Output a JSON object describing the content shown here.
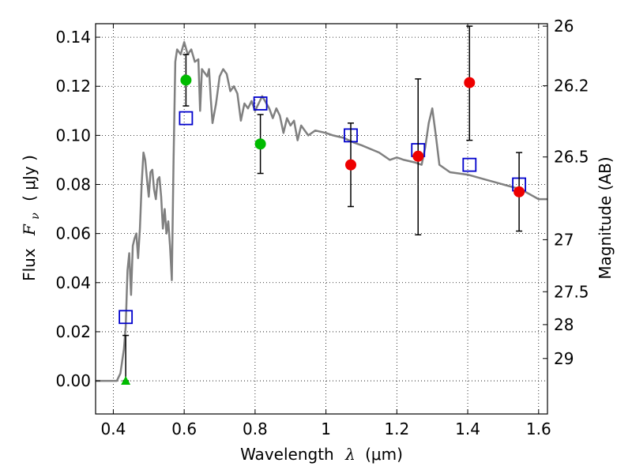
{
  "chart_data": {
    "type": "scatter",
    "title": "",
    "xlabel": {
      "prefix": "Wavelength",
      "symbol": "λ",
      "unit": "(μm)"
    },
    "ylabel": {
      "prefix": "Flux",
      "symbol": "F",
      "subscript": "ν",
      "unit": "( μJy )"
    },
    "y2label": "Magnitude (AB)",
    "xlim": [
      0.35,
      1.625
    ],
    "ylim": [
      -0.0135,
      0.1455
    ],
    "x_ticks": [
      0.4,
      0.6,
      0.8,
      1.0,
      1.2,
      1.4,
      1.6
    ],
    "x_tick_labels": [
      "0.4",
      "0.6",
      "0.8",
      "1",
      "1.2",
      "1.4",
      "1.6"
    ],
    "y_ticks": [
      0.0,
      0.02,
      0.04,
      0.06,
      0.08,
      0.1,
      0.12,
      0.14
    ],
    "y_tick_labels": [
      "0.00",
      "0.02",
      "0.04",
      "0.06",
      "0.08",
      "0.10",
      "0.12",
      "0.14"
    ],
    "y2_ticks": [
      {
        "flux": 0.1445,
        "label": "26"
      },
      {
        "flux": 0.1202,
        "label": "26.2"
      },
      {
        "flux": 0.0912,
        "label": "26.5"
      },
      {
        "flux": 0.0575,
        "label": "27"
      },
      {
        "flux": 0.0363,
        "label": "27.5"
      },
      {
        "flux": 0.0229,
        "label": "28"
      },
      {
        "flux": 0.0091,
        "label": "29"
      }
    ],
    "grid": true,
    "colors": {
      "model": "#808080",
      "observed_green": "#00bb00",
      "observed_red": "#ee0000",
      "model_band": "#0000cc",
      "errorbar": "#000000"
    },
    "series": [
      {
        "kind": "model_sed_line",
        "points": [
          [
            0.35,
            0.0
          ],
          [
            0.41,
            0.0
          ],
          [
            0.42,
            0.003
          ],
          [
            0.43,
            0.013
          ],
          [
            0.435,
            0.022
          ],
          [
            0.44,
            0.045
          ],
          [
            0.445,
            0.052
          ],
          [
            0.45,
            0.035
          ],
          [
            0.455,
            0.055
          ],
          [
            0.46,
            0.058
          ],
          [
            0.465,
            0.06
          ],
          [
            0.47,
            0.05
          ],
          [
            0.475,
            0.062
          ],
          [
            0.48,
            0.08
          ],
          [
            0.485,
            0.093
          ],
          [
            0.49,
            0.09
          ],
          [
            0.495,
            0.082
          ],
          [
            0.5,
            0.075
          ],
          [
            0.505,
            0.085
          ],
          [
            0.51,
            0.086
          ],
          [
            0.515,
            0.078
          ],
          [
            0.52,
            0.074
          ],
          [
            0.525,
            0.082
          ],
          [
            0.53,
            0.083
          ],
          [
            0.535,
            0.075
          ],
          [
            0.54,
            0.062
          ],
          [
            0.545,
            0.07
          ],
          [
            0.55,
            0.06
          ],
          [
            0.555,
            0.065
          ],
          [
            0.56,
            0.055
          ],
          [
            0.565,
            0.041
          ],
          [
            0.57,
            0.09
          ],
          [
            0.575,
            0.13
          ],
          [
            0.58,
            0.135
          ],
          [
            0.59,
            0.133
          ],
          [
            0.6,
            0.138
          ],
          [
            0.61,
            0.133
          ],
          [
            0.62,
            0.135
          ],
          [
            0.63,
            0.13
          ],
          [
            0.64,
            0.131
          ],
          [
            0.645,
            0.11
          ],
          [
            0.65,
            0.127
          ],
          [
            0.66,
            0.125
          ],
          [
            0.665,
            0.124
          ],
          [
            0.67,
            0.127
          ],
          [
            0.675,
            0.115
          ],
          [
            0.68,
            0.105
          ],
          [
            0.69,
            0.113
          ],
          [
            0.7,
            0.124
          ],
          [
            0.71,
            0.127
          ],
          [
            0.72,
            0.125
          ],
          [
            0.73,
            0.118
          ],
          [
            0.74,
            0.12
          ],
          [
            0.75,
            0.117
          ],
          [
            0.76,
            0.106
          ],
          [
            0.77,
            0.113
          ],
          [
            0.78,
            0.111
          ],
          [
            0.79,
            0.114
          ],
          [
            0.8,
            0.11
          ],
          [
            0.82,
            0.116
          ],
          [
            0.84,
            0.111
          ],
          [
            0.85,
            0.107
          ],
          [
            0.86,
            0.111
          ],
          [
            0.87,
            0.108
          ],
          [
            0.88,
            0.101
          ],
          [
            0.89,
            0.107
          ],
          [
            0.9,
            0.104
          ],
          [
            0.91,
            0.106
          ],
          [
            0.92,
            0.098
          ],
          [
            0.93,
            0.104
          ],
          [
            0.95,
            0.1
          ],
          [
            0.97,
            0.102
          ],
          [
            1.0,
            0.101
          ],
          [
            1.02,
            0.1
          ],
          [
            1.05,
            0.099
          ],
          [
            1.08,
            0.097
          ],
          [
            1.1,
            0.096
          ],
          [
            1.15,
            0.093
          ],
          [
            1.18,
            0.09
          ],
          [
            1.2,
            0.091
          ],
          [
            1.22,
            0.09
          ],
          [
            1.25,
            0.089
          ],
          [
            1.27,
            0.088
          ],
          [
            1.28,
            0.095
          ],
          [
            1.29,
            0.105
          ],
          [
            1.3,
            0.111
          ],
          [
            1.31,
            0.1
          ],
          [
            1.32,
            0.088
          ],
          [
            1.35,
            0.085
          ],
          [
            1.4,
            0.084
          ],
          [
            1.45,
            0.082
          ],
          [
            1.5,
            0.08
          ],
          [
            1.55,
            0.078
          ],
          [
            1.6,
            0.074
          ],
          [
            1.625,
            0.074
          ]
        ]
      },
      {
        "kind": "model_band_flux",
        "marker": "open-square",
        "points": [
          [
            0.435,
            0.026
          ],
          [
            0.605,
            0.107
          ],
          [
            0.815,
            0.113
          ],
          [
            1.07,
            0.1
          ],
          [
            1.26,
            0.094
          ],
          [
            1.405,
            0.088
          ],
          [
            1.545,
            0.08
          ]
        ]
      },
      {
        "kind": "observed_flux_green",
        "marker": "filled-circle",
        "points": [
          {
            "x": 0.605,
            "y": 0.1225,
            "yerr_low": 0.112,
            "yerr_high": 0.133
          },
          {
            "x": 0.815,
            "y": 0.0965,
            "yerr_low": 0.0845,
            "yerr_high": 0.1085
          }
        ]
      },
      {
        "kind": "observed_upper_limit",
        "marker": "triangle-up",
        "points": [
          {
            "x": 0.435,
            "y": 0.0,
            "yerr_low": 0.0,
            "yerr_high": 0.0185
          }
        ]
      },
      {
        "kind": "observed_flux_red",
        "marker": "filled-circle",
        "points": [
          {
            "x": 1.07,
            "y": 0.088,
            "yerr_low": 0.071,
            "yerr_high": 0.105
          },
          {
            "x": 1.26,
            "y": 0.0915,
            "yerr_low": 0.0595,
            "yerr_high": 0.123
          },
          {
            "x": 1.405,
            "y": 0.1215,
            "yerr_low": 0.098,
            "yerr_high": 0.1445
          },
          {
            "x": 1.545,
            "y": 0.077,
            "yerr_low": 0.061,
            "yerr_high": 0.093
          }
        ]
      }
    ]
  }
}
